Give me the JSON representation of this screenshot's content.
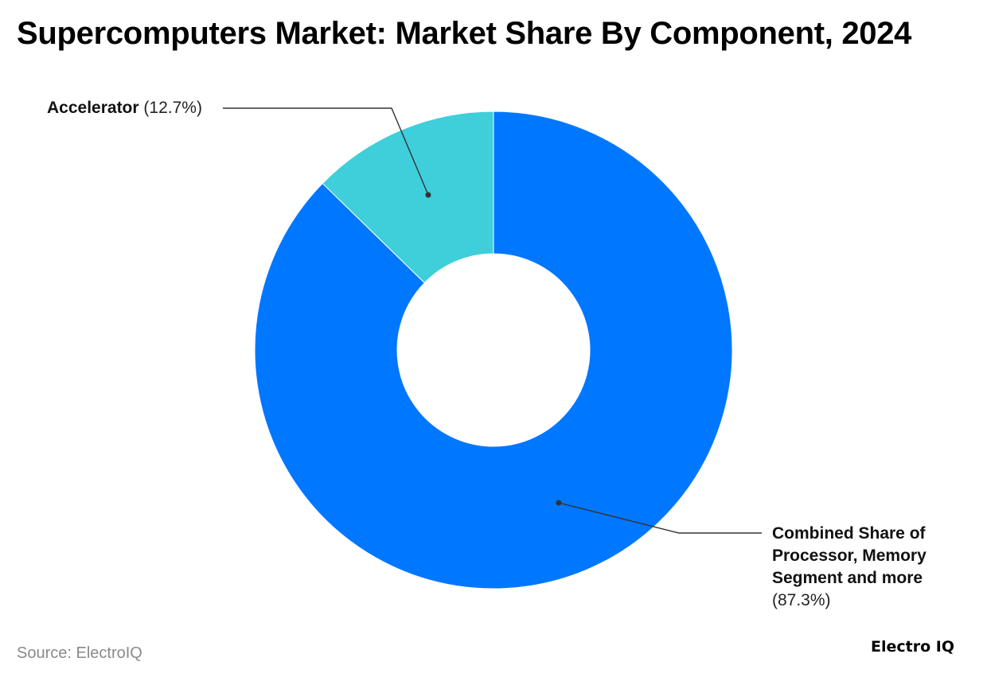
{
  "title": "Supercomputers Market: Market Share By Component, 2024",
  "source": "Source: ElectroIQ",
  "brand": "Electro IQ",
  "labels": {
    "accelerator_name": "Accelerator",
    "accelerator_pct": "(12.7%)",
    "combined_name": "Combined Share of Processor, Memory Segment and more",
    "combined_pct": "(87.3%)"
  },
  "chart_data": {
    "type": "pie",
    "subtype": "donut",
    "title": "Supercomputers Market: Market Share By Component, 2024",
    "slices": [
      {
        "label": "Combined Share of Processor, Memory Segment and more",
        "value": 87.3,
        "color": "#0077ff"
      },
      {
        "label": "Accelerator",
        "value": 12.7,
        "color": "#3ecfdb"
      }
    ],
    "legend": "none",
    "label_placement": "outside-with-leader-lines"
  },
  "colors": {
    "processor_memory": "#0077ff",
    "accelerator": "#3ecfdb",
    "leader_line": "#333333"
  }
}
